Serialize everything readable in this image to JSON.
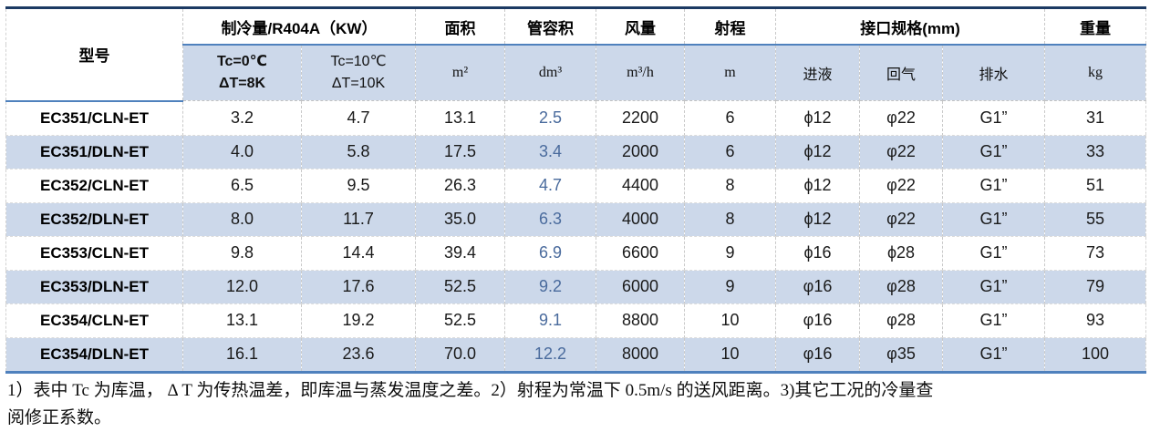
{
  "table": {
    "header": {
      "model_label": "型号",
      "cooling_label": "制冷量/R404A（KW）",
      "area_label": "面积",
      "volume_label": "管容积",
      "airflow_label": "风量",
      "throw_label": "射程",
      "ports_label": "接口规格(mm)",
      "weight_label": "重量",
      "cooling_sub": [
        {
          "line1": "Tc=0℃",
          "line2": "ΔT=8K"
        },
        {
          "line1": "Tc=10℃",
          "line2": "ΔT=10K"
        }
      ],
      "area_unit": "m²",
      "volume_unit": "dm³",
      "airflow_unit": "m³/h",
      "throw_unit": "m",
      "port_in": "进液",
      "port_out": "回气",
      "port_drain": "排水",
      "weight_unit": "kg"
    },
    "rows": [
      {
        "model": "EC351/CLN-ET",
        "values": [
          "3.2",
          "4.7",
          "13.1",
          "2.5",
          "2200",
          "6",
          "ϕ12",
          "φ22",
          "G1”",
          "31"
        ]
      },
      {
        "model": "EC351/DLN-ET",
        "values": [
          "4.0",
          "5.8",
          "17.5",
          "3.4",
          "2000",
          "6",
          "ϕ12",
          "φ22",
          "G1”",
          "33"
        ]
      },
      {
        "model": "EC352/CLN-ET",
        "values": [
          "6.5",
          "9.5",
          "26.3",
          "4.7",
          "4400",
          "8",
          "ϕ12",
          "φ22",
          "G1”",
          "51"
        ]
      },
      {
        "model": "EC352/DLN-ET",
        "values": [
          "8.0",
          "11.7",
          "35.0",
          "6.3",
          "4000",
          "8",
          "ϕ12",
          "φ22",
          "G1”",
          "55"
        ]
      },
      {
        "model": "EC353/CLN-ET",
        "values": [
          "9.8",
          "14.4",
          "39.4",
          "6.9",
          "6600",
          "9",
          "ϕ16",
          "ϕ28",
          "G1”",
          "73"
        ]
      },
      {
        "model": "EC353/DLN-ET",
        "values": [
          "12.0",
          "17.6",
          "52.5",
          "9.2",
          "6000",
          "9",
          "φ16",
          "φ28",
          "G1”",
          "79"
        ]
      },
      {
        "model": "EC354/CLN-ET",
        "values": [
          "13.1",
          "19.2",
          "52.5",
          "9.1",
          "8800",
          "10",
          "φ16",
          "φ28",
          "G1”",
          "93"
        ]
      },
      {
        "model": "EC354/DLN-ET",
        "values": [
          "16.1",
          "23.6",
          "70.0",
          "12.2",
          "8000",
          "10",
          "φ16",
          "φ35",
          "G1”",
          "100"
        ]
      }
    ]
  },
  "notes": {
    "line1": "1）表中 Tc 为库温， Δ T 为传热温差，即库温与蒸发温度之差。2）射程为常温下 0.5m/s 的送风距离。3)其它工况的冷量查",
    "line2": "阅修正系数。"
  },
  "colors": {
    "top_border": "#1c3a63",
    "accent_line": "#4f81bd",
    "band_background": "#ccd8ea",
    "volume_value_text": "#4a6b9d"
  }
}
